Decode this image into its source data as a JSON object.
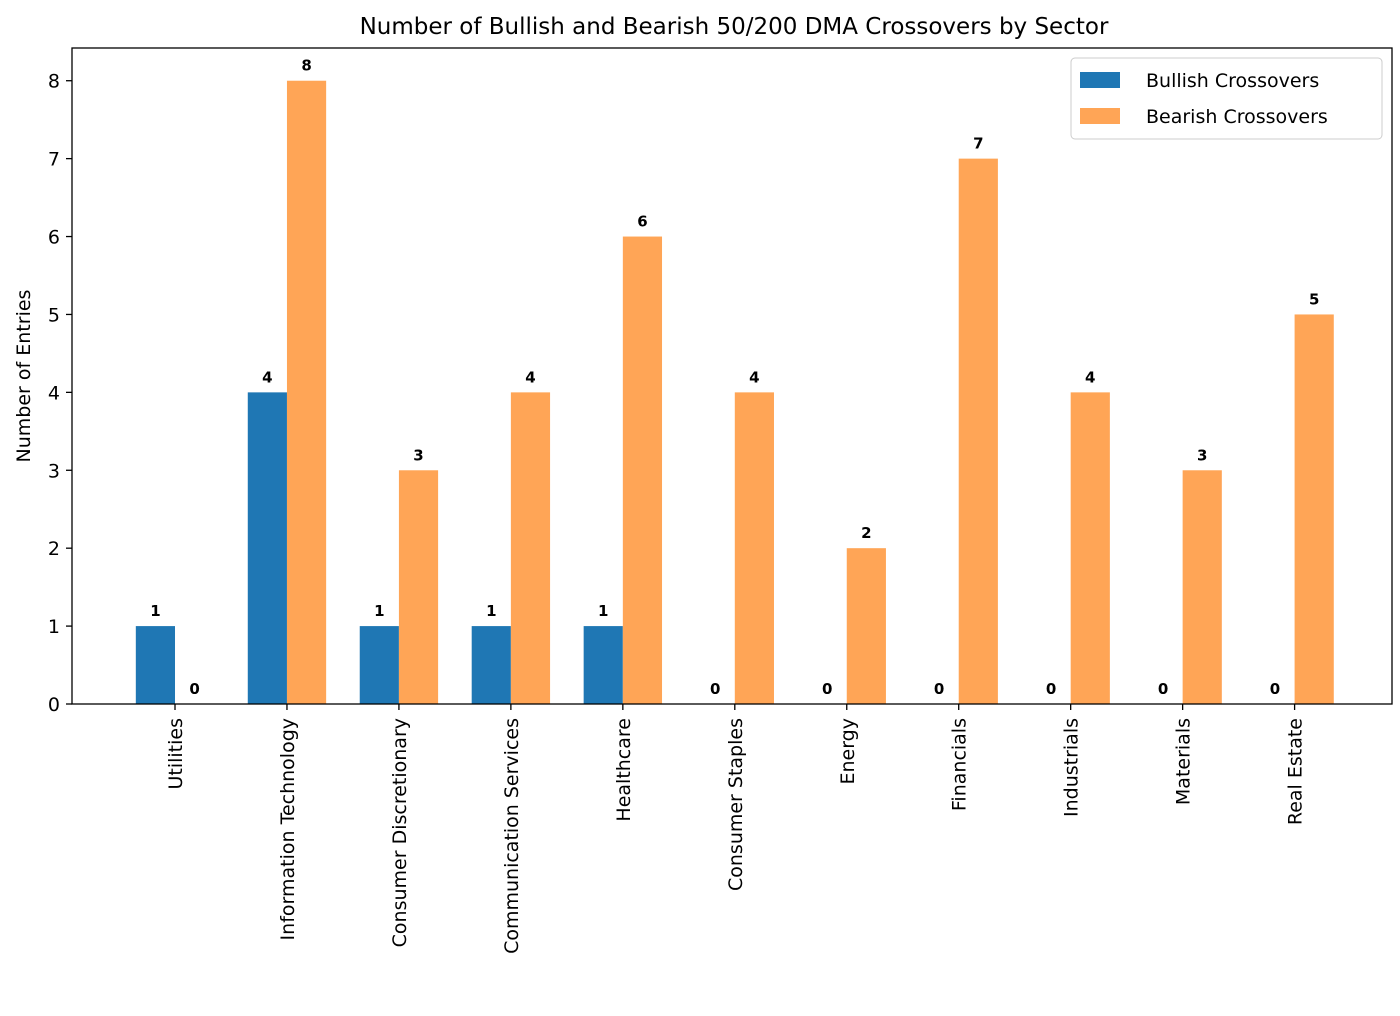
{
  "chart_data": {
    "type": "bar",
    "title": "Number of Bullish and Bearish 50/200 DMA Crossovers by Sector",
    "xlabel": "",
    "ylabel": "Number of Entries",
    "categories": [
      "Utilities",
      "Information Technology",
      "Consumer Discretionary",
      "Communication Services",
      "Healthcare",
      "Consumer Staples",
      "Energy",
      "Financials",
      "Industrials",
      "Materials",
      "Real Estate"
    ],
    "series": [
      {
        "name": "Bullish Crossovers",
        "color": "#1f77b4",
        "values": [
          1,
          4,
          1,
          1,
          1,
          0,
          0,
          0,
          0,
          0,
          0
        ]
      },
      {
        "name": "Bearish Crossovers",
        "color": "#ffa556",
        "values": [
          0,
          8,
          3,
          4,
          6,
          4,
          2,
          7,
          4,
          3,
          5
        ]
      }
    ],
    "ylim": [
      0,
      8.42
    ],
    "yticks": [
      0,
      1,
      2,
      3,
      4,
      5,
      6,
      7,
      8
    ],
    "grid": false,
    "legend_position": "top-right",
    "data_labels": true
  }
}
